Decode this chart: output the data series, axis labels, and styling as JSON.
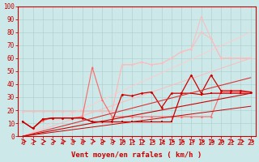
{
  "title": "",
  "xlabel": "Vent moyen/en rafales ( km/h )",
  "bg_color": "#cce8e8",
  "grid_color": "#aacccc",
  "xlim": [
    -0.5,
    23.5
  ],
  "ylim": [
    0,
    100
  ],
  "yticks": [
    0,
    10,
    20,
    30,
    40,
    50,
    60,
    70,
    80,
    90,
    100
  ],
  "xticks": [
    0,
    1,
    2,
    3,
    4,
    5,
    6,
    7,
    8,
    9,
    10,
    11,
    12,
    13,
    14,
    15,
    16,
    17,
    18,
    19,
    20,
    21,
    22,
    23
  ],
  "series": [
    {
      "label": "light_pink_1",
      "x": [
        0,
        1,
        2,
        3,
        4,
        5,
        6,
        7,
        8,
        9,
        10,
        11,
        12,
        13,
        14,
        15,
        16,
        17,
        18,
        19,
        20,
        21,
        22,
        23
      ],
      "y": [
        19,
        19,
        19,
        19,
        19,
        19,
        19,
        19,
        19,
        19,
        55,
        55,
        57,
        55,
        56,
        60,
        65,
        67,
        92,
        75,
        60,
        60,
        60,
        60
      ],
      "color": "#ffbbbb",
      "marker": "D",
      "markersize": 1.5,
      "linewidth": 0.7
    },
    {
      "label": "light_pink_2",
      "x": [
        0,
        1,
        2,
        3,
        4,
        5,
        6,
        7,
        8,
        9,
        10,
        11,
        12,
        13,
        14,
        15,
        16,
        17,
        18,
        19,
        20,
        21,
        22,
        23
      ],
      "y": [
        19,
        19,
        19,
        19,
        19,
        19,
        19,
        19,
        19,
        19,
        55,
        55,
        57,
        55,
        56,
        60,
        65,
        67,
        80,
        75,
        60,
        60,
        60,
        60
      ],
      "color": "#ffbbbb",
      "marker": "D",
      "markersize": 1.5,
      "linewidth": 0.7
    },
    {
      "label": "light_pink_diag1",
      "x": [
        0,
        23
      ],
      "y": [
        0,
        60
      ],
      "color": "#ffbbbb",
      "marker": "None",
      "markersize": 0,
      "linewidth": 0.7
    },
    {
      "label": "light_pink_diag2",
      "x": [
        0,
        23
      ],
      "y": [
        0,
        80
      ],
      "color": "#ffcccc",
      "marker": "None",
      "markersize": 0,
      "linewidth": 0.7
    },
    {
      "label": "mid_red_spike",
      "x": [
        0,
        1,
        2,
        3,
        4,
        5,
        6,
        7,
        8,
        9,
        10,
        11,
        12,
        13,
        14,
        15,
        16,
        17,
        18,
        19,
        20,
        21,
        22,
        23
      ],
      "y": [
        11,
        6,
        12,
        14,
        14,
        14,
        15,
        53,
        28,
        15,
        15,
        15,
        15,
        15,
        15,
        15,
        15,
        15,
        15,
        15,
        34,
        34,
        34,
        34
      ],
      "color": "#ff6666",
      "marker": "^",
      "markersize": 2.0,
      "linewidth": 0.8
    },
    {
      "label": "dark_red_1",
      "x": [
        0,
        1,
        2,
        3,
        4,
        5,
        6,
        7,
        8,
        9,
        10,
        11,
        12,
        13,
        14,
        15,
        16,
        17,
        18,
        19,
        20,
        21,
        22,
        23
      ],
      "y": [
        11,
        6,
        13,
        14,
        14,
        14,
        14,
        11,
        11,
        11,
        32,
        31,
        33,
        34,
        22,
        33,
        33,
        47,
        33,
        47,
        35,
        35,
        35,
        34
      ],
      "color": "#cc0000",
      "marker": "D",
      "markersize": 1.8,
      "linewidth": 0.9
    },
    {
      "label": "dark_red_2",
      "x": [
        0,
        1,
        2,
        3,
        4,
        5,
        6,
        7,
        8,
        9,
        10,
        11,
        12,
        13,
        14,
        15,
        16,
        17,
        18,
        19,
        20,
        21,
        22,
        23
      ],
      "y": [
        11,
        6,
        13,
        14,
        14,
        14,
        14,
        11,
        11,
        11,
        11,
        11,
        11,
        11,
        11,
        11,
        33,
        33,
        32,
        33,
        33,
        33,
        33,
        33
      ],
      "color": "#cc0000",
      "marker": "s",
      "markersize": 1.8,
      "linewidth": 0.9
    },
    {
      "label": "dark_red_diag1",
      "x": [
        0,
        23
      ],
      "y": [
        0,
        33
      ],
      "color": "#cc0000",
      "marker": "None",
      "markersize": 0,
      "linewidth": 0.8
    },
    {
      "label": "dark_red_diag2",
      "x": [
        0,
        23
      ],
      "y": [
        0,
        45
      ],
      "color": "#dd3333",
      "marker": "None",
      "markersize": 0,
      "linewidth": 0.8
    },
    {
      "label": "dark_red_diag3",
      "x": [
        0,
        23
      ],
      "y": [
        0,
        23
      ],
      "color": "#cc0000",
      "marker": "None",
      "markersize": 0,
      "linewidth": 0.7
    }
  ],
  "arrow_color": "#cc0000",
  "axis_color": "#cc0000",
  "tick_color": "#cc0000",
  "label_color": "#cc0000",
  "tick_fontsize": 5.5,
  "xlabel_fontsize": 6.5
}
